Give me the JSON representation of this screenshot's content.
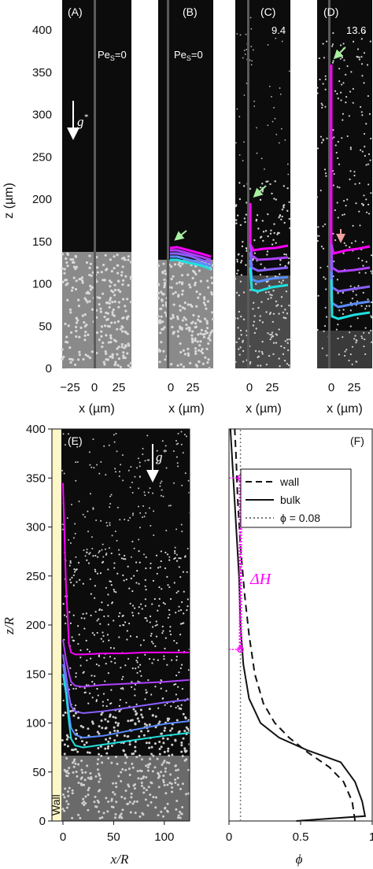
{
  "colors": {
    "magenta": "#ff00ff",
    "purple": "#b040ff",
    "violet": "#8a60ff",
    "blue": "#5a8cff",
    "cyan": "#20e0e0",
    "arrow_green": "#a8f0a0",
    "arrow_pink": "#f0a0a0",
    "wall_yellow": "#fdf6c8",
    "image_bg": "#0c0c0c"
  },
  "top": {
    "ylabel": "z (µm)",
    "yticks": [
      "0",
      "50",
      "100",
      "150",
      "200",
      "250",
      "300",
      "350",
      "400"
    ],
    "panels": [
      {
        "label": "(A)",
        "pes_label": "Pe",
        "pes_sub": "S",
        "pes_value": "=0",
        "xlabel": "x (µm)",
        "xticks": [
          "−25",
          "0",
          "25"
        ]
      },
      {
        "label": "(B)",
        "pes_label": "Pe",
        "pes_sub": "S",
        "pes_value": "=0",
        "xlabel": "x (µm)",
        "xticks": [
          "0",
          "25"
        ]
      },
      {
        "label": "(C)",
        "pes_label": "",
        "pes_sub": "",
        "pes_value": "9.4",
        "xlabel": "x (µm)",
        "xticks": [
          "0",
          "25"
        ]
      },
      {
        "label": "(D)",
        "pes_label": "",
        "pes_sub": "",
        "pes_value": "13.6",
        "xlabel": "x (µm)",
        "xticks": [
          "0",
          "25"
        ]
      }
    ],
    "gravity_label": "g",
    "gravity_sup": "*"
  },
  "panel_E": {
    "label": "(E)",
    "wall_label": "Wall",
    "xlabel": "x/R",
    "ylabel": "z/R",
    "xticks": [
      "0",
      "50",
      "100"
    ],
    "yticks": [
      "0",
      "50",
      "100",
      "150",
      "200",
      "250",
      "300",
      "350",
      "400"
    ],
    "gravity_label": "g",
    "gravity_sup": "*",
    "front_heights": [
      172,
      144,
      124,
      102,
      90
    ],
    "wall_peak_heights": [
      345,
      185,
      170,
      160,
      150
    ]
  },
  "panel_F": {
    "label": "(F)",
    "xlabel": "ϕ",
    "xticks": [
      "0",
      "0.5",
      "1"
    ],
    "legend": [
      "wall",
      "bulk",
      "ϕ = 0.08"
    ],
    "delta_label": "ΔH",
    "delta_range": [
      175,
      350
    ],
    "phi_ref": 0.08
  },
  "chart_data": [
    {
      "type": "line",
      "title": "",
      "xlabel": "x/R",
      "ylabel": "z/R",
      "xlim": [
        0,
        125
      ],
      "ylim": [
        0,
        400
      ],
      "series": [
        {
          "x": [
            0,
            3,
            6,
            8,
            12,
            20,
            40,
            60,
            80,
            100,
            125
          ],
          "y": [
            345,
            240,
            180,
            172,
            170,
            170,
            171,
            171,
            172,
            172,
            172
          ]
        },
        {
          "x": [
            0,
            3,
            6,
            8,
            12,
            20,
            40,
            60,
            80,
            100,
            125
          ],
          "y": [
            185,
            165,
            150,
            142,
            138,
            137,
            139,
            140,
            141,
            142,
            144
          ]
        },
        {
          "x": [
            0,
            3,
            6,
            8,
            12,
            20,
            40,
            60,
            80,
            100,
            125
          ],
          "y": [
            170,
            150,
            128,
            117,
            112,
            110,
            112,
            115,
            118,
            121,
            124
          ]
        },
        {
          "x": [
            0,
            3,
            6,
            8,
            12,
            20,
            40,
            60,
            80,
            100,
            125
          ],
          "y": [
            160,
            140,
            110,
            95,
            88,
            85,
            87,
            91,
            95,
            99,
            102
          ]
        },
        {
          "x": [
            0,
            3,
            6,
            8,
            12,
            20,
            40,
            60,
            80,
            100,
            125
          ],
          "y": [
            150,
            130,
            100,
            84,
            77,
            75,
            78,
            81,
            84,
            87,
            90
          ]
        }
      ]
    },
    {
      "type": "line",
      "title": "",
      "xlabel": "ϕ",
      "ylabel": "",
      "xlim": [
        0,
        1
      ],
      "ylim": [
        0,
        400
      ],
      "series": [
        {
          "name": "wall",
          "x": [
            0.88,
            0.86,
            0.8,
            0.7,
            0.55,
            0.42,
            0.32,
            0.24,
            0.18,
            0.14,
            0.11,
            0.08,
            0.06,
            0.05,
            0.04
          ],
          "y": [
            0,
            20,
            40,
            55,
            70,
            85,
            100,
            120,
            150,
            190,
            230,
            280,
            330,
            370,
            400
          ]
        },
        {
          "name": "bulk",
          "x": [
            0.47,
            0.95,
            0.93,
            0.88,
            0.78,
            0.55,
            0.35,
            0.22,
            0.14,
            0.1,
            0.08,
            0.07,
            0.05,
            0.03,
            0.01
          ],
          "y": [
            0,
            5,
            20,
            40,
            60,
            72,
            85,
            100,
            125,
            160,
            200,
            250,
            300,
            350,
            400
          ]
        },
        {
          "name": "ϕ = 0.08",
          "x": [
            0.08,
            0.08
          ],
          "y": [
            0,
            400
          ]
        }
      ]
    }
  ]
}
